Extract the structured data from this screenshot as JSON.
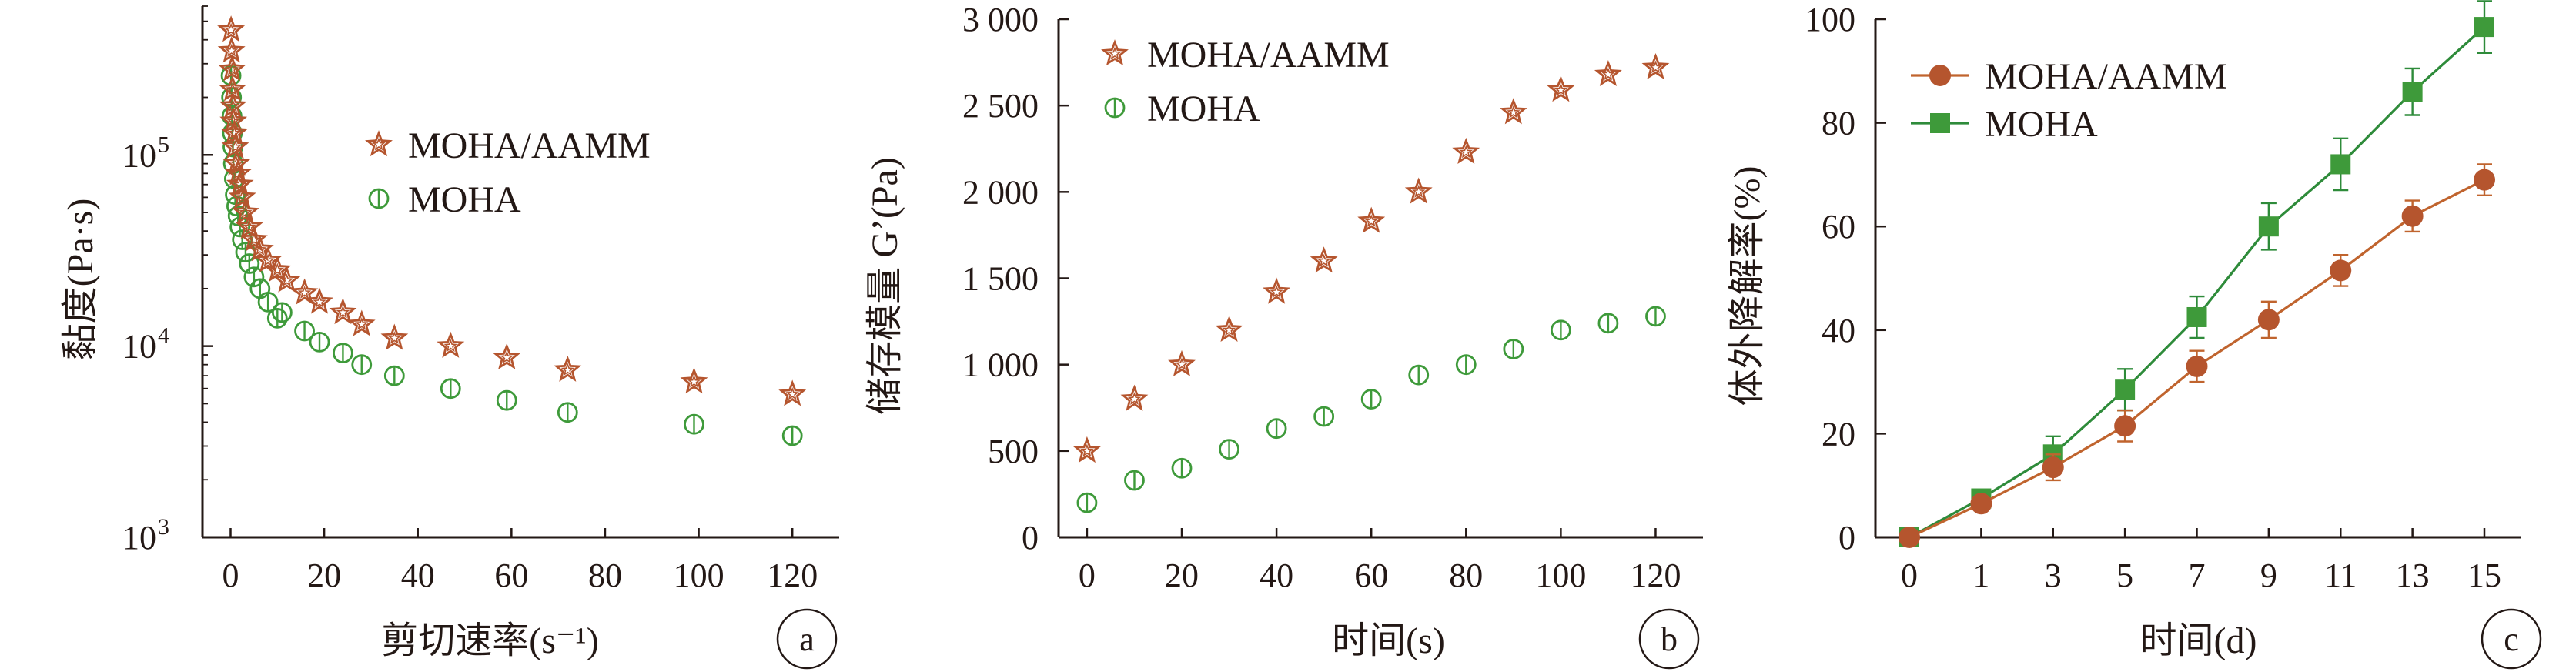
{
  "colors": {
    "moha_aamm": "#B5552E",
    "moha": "#3E9A3A",
    "line_moha_aamm": "#C0642E",
    "line_moha": "#2E8B3A",
    "axis": "#231815"
  },
  "chart_data": [
    {
      "id": "a",
      "type": "scatter",
      "panel_label": "a",
      "xlabel": "剪切速率(s⁻¹)",
      "ylabel": "黏度(Pa·s)",
      "xlim": [
        -6,
        130
      ],
      "ylim": [
        1000,
        600000
      ],
      "yscale": "log",
      "x_ticks": [
        0,
        20,
        40,
        60,
        80,
        100,
        120
      ],
      "x_tick_labels": [
        "0",
        "20",
        "40",
        "60",
        "80",
        "100",
        "120"
      ],
      "y_ticks": [
        1000,
        10000,
        100000
      ],
      "y_tick_labels": [
        {
          "base": "10",
          "exp": "3"
        },
        {
          "base": "10",
          "exp": "4"
        },
        {
          "base": "10",
          "exp": "5"
        }
      ],
      "legend_position": "upper-middle",
      "series": [
        {
          "name": "MOHA/AAMM",
          "marker": "star",
          "x": [
            0.1,
            0.2,
            0.3,
            0.4,
            0.5,
            0.6,
            0.8,
            1.0,
            1.3,
            1.6,
            2.0,
            2.5,
            3.2,
            4.0,
            5.0,
            6.3,
            8.0,
            10.0,
            12.0,
            15.8,
            19.0,
            24.0,
            28.0,
            35.0,
            47.0,
            59.0,
            72.0,
            99.0,
            120.0
          ],
          "y": [
            450000,
            350000,
            280000,
            220000,
            180000,
            150000,
            130000,
            110000,
            90000,
            80000,
            70000,
            60000,
            50000,
            42000,
            36000,
            32000,
            28000,
            25000,
            22000,
            19000,
            17000,
            15000,
            13000,
            11000,
            10000,
            8700,
            7500,
            6500,
            5600
          ]
        },
        {
          "name": "MOHA",
          "marker": "circle",
          "x": [
            0.1,
            0.2,
            0.3,
            0.4,
            0.5,
            0.6,
            0.8,
            1.0,
            1.3,
            1.6,
            2.0,
            2.5,
            3.2,
            4.0,
            5.0,
            6.3,
            8.0,
            10.0,
            11.0,
            15.8,
            19.0,
            24.0,
            28.0,
            35.0,
            47.0,
            59.0,
            72.0,
            99.0,
            120.0
          ],
          "y": [
            260000,
            200000,
            160000,
            130000,
            110000,
            90000,
            75000,
            62000,
            54000,
            48000,
            42000,
            36000,
            31000,
            27000,
            23000,
            20000,
            17000,
            14000,
            15000,
            12000,
            10500,
            9200,
            8000,
            7000,
            6000,
            5200,
            4500,
            3900,
            3400
          ]
        }
      ]
    },
    {
      "id": "b",
      "type": "scatter",
      "panel_label": "b",
      "xlabel": "时间(s)",
      "ylabel": "储存模量 G’(Pa)",
      "xlim": [
        -6,
        130
      ],
      "ylim": [
        0,
        3000
      ],
      "x_ticks": [
        0,
        20,
        40,
        60,
        80,
        100,
        120
      ],
      "x_tick_labels": [
        "0",
        "20",
        "40",
        "60",
        "80",
        "100",
        "120"
      ],
      "y_ticks": [
        0,
        500,
        1000,
        1500,
        2000,
        2500,
        3000
      ],
      "y_tick_labels": [
        "0",
        "500",
        "1 000",
        "1 500",
        "2 000",
        "2 500",
        "3 000"
      ],
      "legend_position": "top-left",
      "series": [
        {
          "name": "MOHA/AAMM",
          "marker": "star",
          "x": [
            0,
            10,
            20,
            30,
            40,
            50,
            60,
            70,
            80,
            90,
            100,
            110,
            120
          ],
          "y": [
            500,
            800,
            1000,
            1200,
            1420,
            1600,
            1830,
            2000,
            2230,
            2460,
            2590,
            2680,
            2720
          ]
        },
        {
          "name": "MOHA",
          "marker": "circle",
          "x": [
            0,
            10,
            20,
            30,
            40,
            50,
            60,
            70,
            80,
            90,
            100,
            110,
            120
          ],
          "y": [
            200,
            330,
            400,
            510,
            630,
            700,
            800,
            940,
            1000,
            1090,
            1200,
            1240,
            1280
          ]
        }
      ]
    },
    {
      "id": "c",
      "type": "line",
      "panel_label": "c",
      "xlabel": "时间(d)",
      "ylabel": "体外降解率(%)",
      "ylim": [
        0,
        100
      ],
      "categories": [
        "0",
        "1",
        "3",
        "5",
        "7",
        "9",
        "11",
        "13",
        "15"
      ],
      "y_ticks": [
        0,
        20,
        40,
        60,
        80,
        100
      ],
      "y_tick_labels": [
        "0",
        "20",
        "40",
        "60",
        "80",
        "100"
      ],
      "legend_position": "top-left",
      "series": [
        {
          "name": "MOHA/AAMM",
          "marker": "circle",
          "values": [
            0,
            6.5,
            13.5,
            21.5,
            33,
            42,
            51.5,
            62,
            69
          ],
          "errors": [
            0,
            1.2,
            2.5,
            3,
            3,
            3.5,
            3,
            3,
            3
          ]
        },
        {
          "name": "MOHA",
          "marker": "square",
          "values": [
            0,
            7.5,
            16,
            28.5,
            42.5,
            60,
            72,
            86,
            98.5
          ],
          "errors": [
            0,
            1.2,
            3.5,
            4,
            4,
            4.5,
            5,
            4.5,
            5
          ]
        }
      ]
    }
  ]
}
